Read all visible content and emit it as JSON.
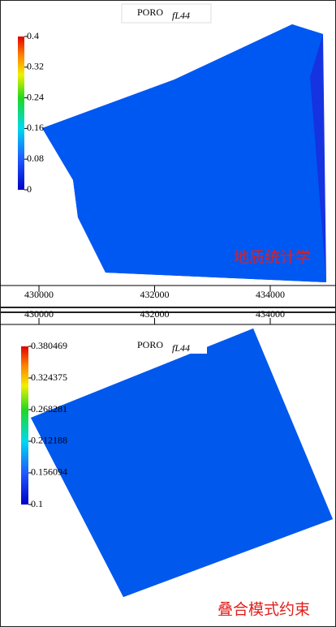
{
  "panels": [
    {
      "title": "PORO",
      "title_subscript": "fL44",
      "colorbar": {
        "lim": [
          0,
          0.4
        ],
        "ticks": [
          0.4,
          0.32,
          0.24,
          0.16,
          0.08,
          0
        ]
      },
      "xlim": [
        429326,
        435137
      ],
      "xticks": [
        430000,
        432000,
        434000
      ],
      "label": "地质统计学"
    },
    {
      "title": "PORO",
      "title_subscript": "fL44",
      "colorbar": {
        "lim": [
          0.1,
          0.380469
        ],
        "ticks": [
          0.380469,
          0.324375,
          0.268281,
          0.212188,
          0.156094,
          0.1
        ]
      },
      "xlim": [
        429326,
        435137
      ],
      "xticks": [
        430000,
        432000,
        434000
      ],
      "label": "叠合模式约束"
    }
  ]
}
